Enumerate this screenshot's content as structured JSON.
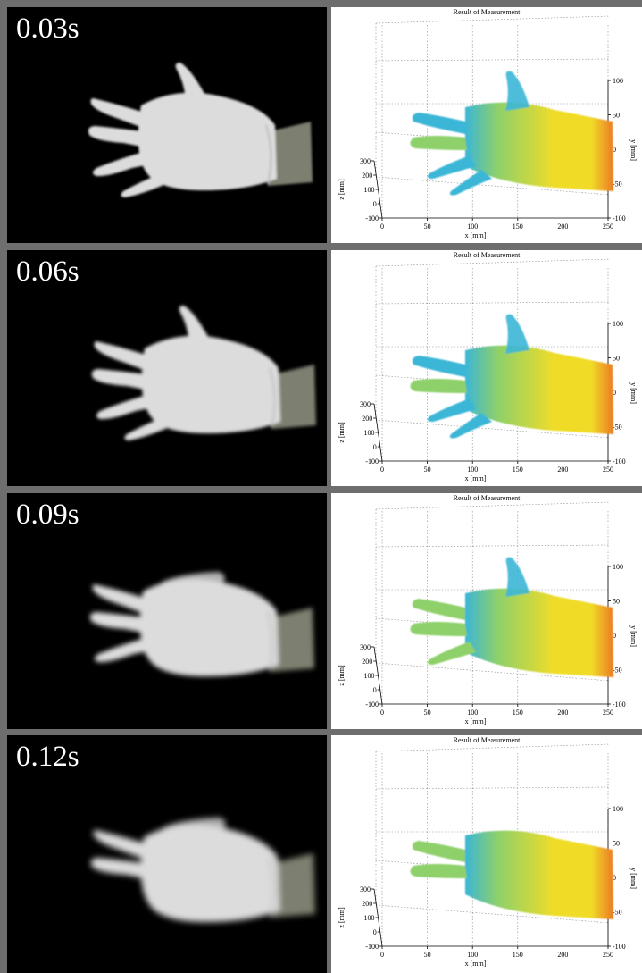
{
  "colors": {
    "background": "#6e6e6e",
    "photo_bg": "#000000",
    "glove": "#dcdcdc",
    "wrist": "#7d7f70",
    "cyan": "#3bb6d6",
    "green": "#8ed06a",
    "yellow": "#f0dc28",
    "orange": "#ec7a23"
  },
  "panels": [
    {
      "time": "0.03s",
      "plot": {
        "title": "Result of Measurement",
        "x_label": "x [mm]",
        "y_label": "y [mm]",
        "z_label": "z [mm]",
        "x_ticks": [
          "0",
          "50",
          "100",
          "150",
          "200",
          "250"
        ],
        "y_ticks": [
          "100",
          "50",
          "0",
          "-50",
          "-100"
        ],
        "z_ticks": [
          "300",
          "200",
          "100",
          "0",
          "-100"
        ]
      }
    },
    {
      "time": "0.06s",
      "plot": {
        "title": "Result of Measurement",
        "x_label": "x [mm]",
        "y_label": "y [mm]",
        "z_label": "z [mm]",
        "x_ticks": [
          "0",
          "50",
          "100",
          "150",
          "200",
          "250"
        ],
        "y_ticks": [
          "100",
          "50",
          "0",
          "-50",
          "-100"
        ],
        "z_ticks": [
          "300",
          "200",
          "100",
          "0",
          "-100"
        ]
      }
    },
    {
      "time": "0.09s",
      "plot": {
        "title": "Result of Measurement",
        "x_label": "x [mm]",
        "y_label": "y [mm]",
        "z_label": "z [mm]",
        "x_ticks": [
          "0",
          "50",
          "100",
          "150",
          "200",
          "250"
        ],
        "y_ticks": [
          "100",
          "50",
          "0",
          "-50",
          "-100"
        ],
        "z_ticks": [
          "300",
          "200",
          "100",
          "0",
          "-100"
        ]
      }
    },
    {
      "time": "0.12s",
      "plot": {
        "title": "Result of Measurement",
        "x_label": "x [mm]",
        "y_label": "y [mm]",
        "z_label": "z [mm]",
        "x_ticks": [
          "0",
          "50",
          "100",
          "150",
          "200",
          "250"
        ],
        "y_ticks": [
          "100",
          "50",
          "0",
          "-50",
          "-100"
        ],
        "z_ticks": [
          "300",
          "200",
          "100",
          "0",
          "-100"
        ]
      }
    }
  ]
}
